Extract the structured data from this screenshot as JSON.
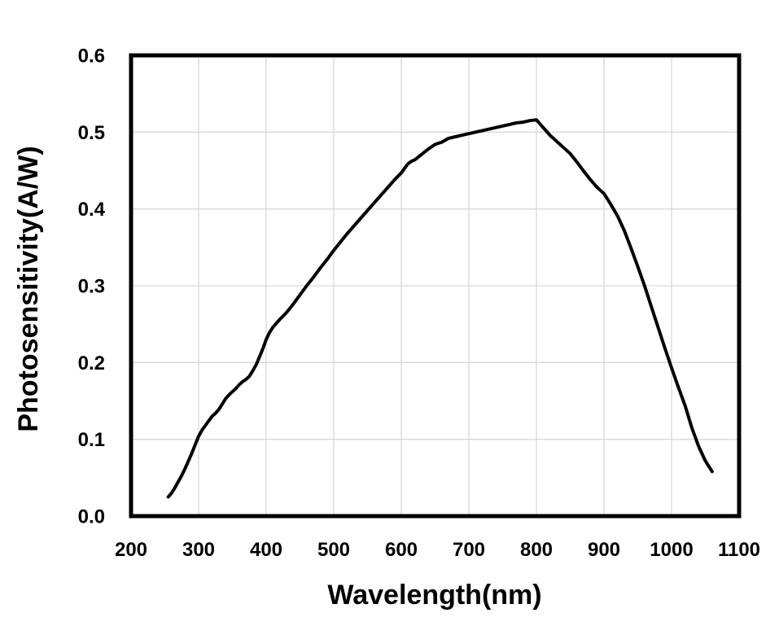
{
  "chart_data": {
    "type": "line",
    "title": "",
    "xlabel": "Wavelength(nm)",
    "ylabel": "Photosensitivity(A/W)",
    "xlim": [
      200,
      1100
    ],
    "ylim": [
      0,
      0.6
    ],
    "x_ticks": [
      200,
      300,
      400,
      500,
      600,
      700,
      800,
      900,
      1000,
      1100
    ],
    "y_ticks": [
      0.0,
      0.1,
      0.2,
      0.3,
      0.4,
      0.5,
      0.6
    ],
    "y_tick_decimals": 1,
    "grid": true,
    "legend": false,
    "series": [
      {
        "name": "Photosensitivity",
        "color": "#000000",
        "points": [
          [
            255,
            0.025
          ],
          [
            260,
            0.03
          ],
          [
            265,
            0.037
          ],
          [
            270,
            0.045
          ],
          [
            275,
            0.053
          ],
          [
            280,
            0.062
          ],
          [
            285,
            0.072
          ],
          [
            290,
            0.082
          ],
          [
            295,
            0.093
          ],
          [
            300,
            0.104
          ],
          [
            305,
            0.112
          ],
          [
            310,
            0.118
          ],
          [
            315,
            0.124
          ],
          [
            320,
            0.13
          ],
          [
            325,
            0.134
          ],
          [
            330,
            0.139
          ],
          [
            335,
            0.146
          ],
          [
            340,
            0.153
          ],
          [
            345,
            0.158
          ],
          [
            350,
            0.162
          ],
          [
            355,
            0.166
          ],
          [
            360,
            0.171
          ],
          [
            365,
            0.175
          ],
          [
            370,
            0.178
          ],
          [
            375,
            0.182
          ],
          [
            380,
            0.189
          ],
          [
            385,
            0.197
          ],
          [
            390,
            0.207
          ],
          [
            395,
            0.218
          ],
          [
            400,
            0.23
          ],
          [
            405,
            0.239
          ],
          [
            410,
            0.246
          ],
          [
            415,
            0.251
          ],
          [
            420,
            0.256
          ],
          [
            430,
            0.265
          ],
          [
            440,
            0.276
          ],
          [
            450,
            0.288
          ],
          [
            460,
            0.3
          ],
          [
            470,
            0.311
          ],
          [
            480,
            0.323
          ],
          [
            490,
            0.334
          ],
          [
            500,
            0.346
          ],
          [
            510,
            0.357
          ],
          [
            520,
            0.368
          ],
          [
            530,
            0.378
          ],
          [
            540,
            0.388
          ],
          [
            550,
            0.398
          ],
          [
            560,
            0.408
          ],
          [
            570,
            0.418
          ],
          [
            580,
            0.428
          ],
          [
            590,
            0.438
          ],
          [
            600,
            0.447
          ],
          [
            605,
            0.453
          ],
          [
            610,
            0.459
          ],
          [
            615,
            0.462
          ],
          [
            620,
            0.464
          ],
          [
            630,
            0.471
          ],
          [
            640,
            0.478
          ],
          [
            650,
            0.484
          ],
          [
            660,
            0.487
          ],
          [
            670,
            0.492
          ],
          [
            680,
            0.494
          ],
          [
            690,
            0.496
          ],
          [
            700,
            0.498
          ],
          [
            710,
            0.5
          ],
          [
            720,
            0.502
          ],
          [
            730,
            0.504
          ],
          [
            740,
            0.506
          ],
          [
            750,
            0.508
          ],
          [
            760,
            0.51
          ],
          [
            770,
            0.512
          ],
          [
            780,
            0.513
          ],
          [
            790,
            0.515
          ],
          [
            800,
            0.516
          ],
          [
            810,
            0.506
          ],
          [
            820,
            0.496
          ],
          [
            830,
            0.488
          ],
          [
            840,
            0.48
          ],
          [
            850,
            0.472
          ],
          [
            860,
            0.461
          ],
          [
            870,
            0.449
          ],
          [
            880,
            0.438
          ],
          [
            890,
            0.428
          ],
          [
            900,
            0.42
          ],
          [
            910,
            0.406
          ],
          [
            920,
            0.391
          ],
          [
            930,
            0.372
          ],
          [
            940,
            0.349
          ],
          [
            950,
            0.325
          ],
          [
            960,
            0.3
          ],
          [
            970,
            0.273
          ],
          [
            980,
            0.246
          ],
          [
            990,
            0.219
          ],
          [
            1000,
            0.193
          ],
          [
            1010,
            0.168
          ],
          [
            1020,
            0.144
          ],
          [
            1030,
            0.115
          ],
          [
            1040,
            0.091
          ],
          [
            1050,
            0.072
          ],
          [
            1060,
            0.058
          ]
        ]
      }
    ]
  },
  "style": {
    "background": "#ffffff",
    "text_color": "#000000",
    "grid_color": "#d9d9d9",
    "axis_color": "#000000",
    "curve_width": 4,
    "frame_width": 5
  }
}
